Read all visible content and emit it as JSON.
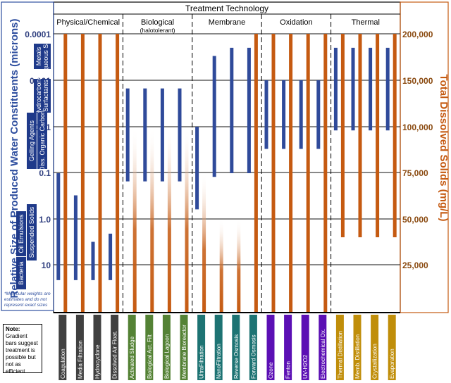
{
  "title": "Treatment Technology",
  "left_axis": {
    "title": "Relative Size of Produced Water Constituents (microns)",
    "ticks": [
      "0.0001",
      "0.001",
      "0.01",
      "0.1",
      "1.0",
      "10"
    ]
  },
  "right_axis": {
    "title": "Total Dissolved Solids (mg/L)",
    "ticks": [
      "200,000",
      "150,000",
      "100,000",
      "75,000",
      "50,000",
      "25,000"
    ]
  },
  "constituents": [
    "Metals",
    "Aqueous Salt",
    "Hydrocarbons",
    "Surfactants",
    "Gelling Agents",
    "Diss. Organic Carbon",
    "Oil Emulsions",
    "Suspended Solids",
    "Bacteria"
  ],
  "mw_note": "*Molecular weights are estimates and do not represent exact sizes",
  "gradient_note": {
    "bold": "Note:",
    "text": "Gradient bars suggest treatment is possible but not as efficient"
  },
  "categories": [
    {
      "name": "Physical/Chemical",
      "sub": "",
      "color": "#404040"
    },
    {
      "name": "Biological",
      "sub": "(halotolerant)",
      "color": "#548235"
    },
    {
      "name": "Membrane",
      "sub": "",
      "color": "#1d7373"
    },
    {
      "name": "Oxidation",
      "sub": "",
      "color": "#5b0fb4"
    },
    {
      "name": "Thermal",
      "sub": "",
      "color": "#c08e0a"
    }
  ],
  "colors": {
    "size_bar": "#2f4a9a",
    "tds_bar": "#c55a11",
    "left_axis": "#2f4f9f",
    "right_axis": "#c55a11"
  },
  "chart_data": {
    "type": "bar",
    "title": "Treatment Technology",
    "ylabel_left": "Relative Size of Produced Water Constituents (microns)",
    "ylabel_right": "Total Dissolved Solids (mg/L)",
    "left_scale": "log",
    "ylim_left": [
      20,
      0.0001
    ],
    "technologies": [
      {
        "name": "Coagulation",
        "category": "Physical/Chemical",
        "size_min": 0.1,
        "size_max": 20,
        "tds_max": 200000,
        "tds_gradient": false
      },
      {
        "name": "Media Filtration",
        "category": "Physical/Chemical",
        "size_min": 0.3,
        "size_max": 20,
        "tds_max": 200000,
        "tds_gradient": false
      },
      {
        "name": "Hydrocyclone",
        "category": "Physical/Chemical",
        "size_min": 3,
        "size_max": 20,
        "tds_max": 200000,
        "tds_gradient": false
      },
      {
        "name": "Dissolved Air Float.",
        "category": "Physical/Chemical",
        "size_min": 2,
        "size_max": 20,
        "tds_max": 200000,
        "tds_gradient": false
      },
      {
        "name": "Activated Sludge",
        "category": "Biological",
        "size_min": 0.0015,
        "size_max": 0.15,
        "tds_max": 100000,
        "tds_gradient": true
      },
      {
        "name": "Biological Act. Filt",
        "category": "Biological",
        "size_min": 0.0015,
        "size_max": 0.15,
        "tds_max": 100000,
        "tds_gradient": true
      },
      {
        "name": "Biological Lagoon",
        "category": "Biological",
        "size_min": 0.0015,
        "size_max": 0.15,
        "tds_max": 100000,
        "tds_gradient": true
      },
      {
        "name": "Membrane Bioreactor",
        "category": "Biological",
        "size_min": 0.0015,
        "size_max": 0.15,
        "tds_max": 100000,
        "tds_gradient": true
      },
      {
        "name": "UltraFiltration",
        "category": "Membrane",
        "size_min": 0.01,
        "size_max": 0.6,
        "tds_max": 75000,
        "tds_gradient": true
      },
      {
        "name": "NanoFiltration",
        "category": "Membrane",
        "size_min": 0.0003,
        "size_max": 0.12,
        "tds_max": 50000,
        "tds_gradient": true
      },
      {
        "name": "Reverse Osmosis",
        "category": "Membrane",
        "size_min": 0.0002,
        "size_max": 0.1,
        "tds_max": 50000,
        "tds_gradient": true
      },
      {
        "name": "Forward Osmosis",
        "category": "Membrane",
        "size_min": 0.0002,
        "size_max": 0.1,
        "tds_max": 200000,
        "tds_gradient": false
      },
      {
        "name": "Ozone",
        "category": "Oxidation",
        "size_min": 0.001,
        "size_max": 0.03,
        "tds_max": 200000,
        "tds_gradient": false
      },
      {
        "name": "Fenton",
        "category": "Oxidation",
        "size_min": 0.001,
        "size_max": 0.03,
        "tds_max": 200000,
        "tds_gradient": false
      },
      {
        "name": "UV-H2O2",
        "category": "Oxidation",
        "size_min": 0.001,
        "size_max": 0.03,
        "tds_max": 200000,
        "tds_gradient": false
      },
      {
        "name": "Electrochemical Ox.",
        "category": "Oxidation",
        "size_min": 0.001,
        "size_max": 0.03,
        "tds_max": 200000,
        "tds_gradient": false
      },
      {
        "name": "Thermal Distillation",
        "category": "Thermal",
        "size_min": 0.0002,
        "size_max": 0.012,
        "tds_max": 200000,
        "tds_min": 40000,
        "tds_gradient": false
      },
      {
        "name": "Memb. Distillation",
        "category": "Thermal",
        "size_min": 0.0002,
        "size_max": 0.012,
        "tds_max": 200000,
        "tds_min": 40000,
        "tds_gradient": false
      },
      {
        "name": "Crystallization",
        "category": "Thermal",
        "size_min": 0.0002,
        "size_max": 0.012,
        "tds_max": 200000,
        "tds_min": 40000,
        "tds_gradient": false
      },
      {
        "name": "Evaporation",
        "category": "Thermal",
        "size_min": 0.0002,
        "size_max": 0.012,
        "tds_max": 200000,
        "tds_min": 40000,
        "tds_gradient": false
      }
    ]
  }
}
